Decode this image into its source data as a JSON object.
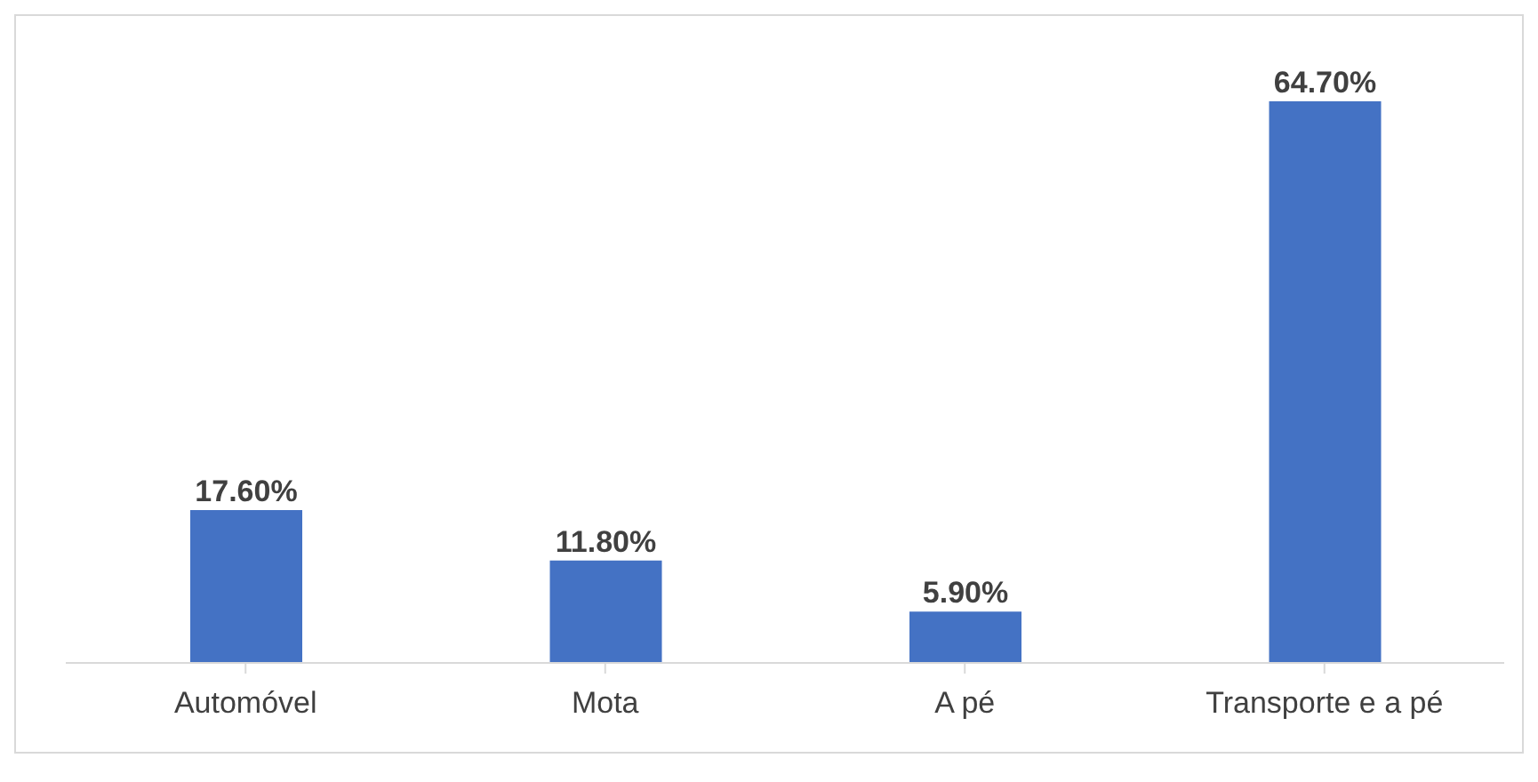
{
  "chart_data": {
    "type": "bar",
    "categories": [
      "Automóvel",
      "Mota",
      "A pé",
      "Transporte e a pé"
    ],
    "values": [
      17.6,
      11.8,
      5.9,
      64.7
    ],
    "value_labels": [
      "17.60%",
      "11.80%",
      "5.90%",
      "64.70%"
    ],
    "color": "#4472c4"
  }
}
